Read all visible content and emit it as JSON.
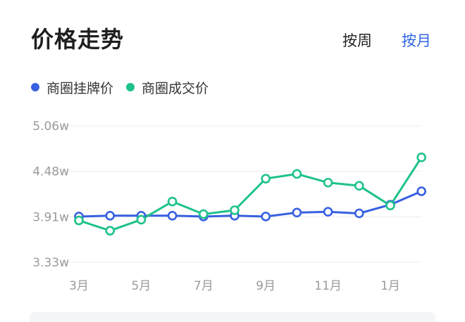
{
  "header": {
    "title": "价格走势",
    "toggle_week": "按周",
    "toggle_month": "按月",
    "active_toggle": "按月"
  },
  "colors": {
    "listing": "#3760e0",
    "deal": "#1fc28a",
    "active_toggle": "#2f66e0"
  },
  "chart_data": {
    "type": "line",
    "x": [
      "3月",
      "4月",
      "5月",
      "6月",
      "7月",
      "8月",
      "9月",
      "10月",
      "11月",
      "12月",
      "1月",
      "2月"
    ],
    "x_tick_labels": [
      "3月",
      "5月",
      "7月",
      "9月",
      "11月",
      "1月"
    ],
    "y_tick_labels": [
      "5.06w",
      "4.48w",
      "3.91w",
      "3.33w"
    ],
    "ylim": [
      3.33,
      5.06
    ],
    "grid": true,
    "legend_position": "top-left",
    "series": [
      {
        "name": "商圈挂牌价",
        "color": "#3760e0",
        "values": [
          3.91,
          3.92,
          3.92,
          3.92,
          3.91,
          3.92,
          3.91,
          3.96,
          3.97,
          3.95,
          4.06,
          4.23
        ]
      },
      {
        "name": "商圈成交价",
        "color": "#1fc28a",
        "values": [
          3.86,
          3.73,
          3.87,
          4.1,
          3.94,
          3.99,
          4.39,
          4.45,
          4.34,
          4.3,
          4.05,
          4.66
        ]
      }
    ]
  }
}
